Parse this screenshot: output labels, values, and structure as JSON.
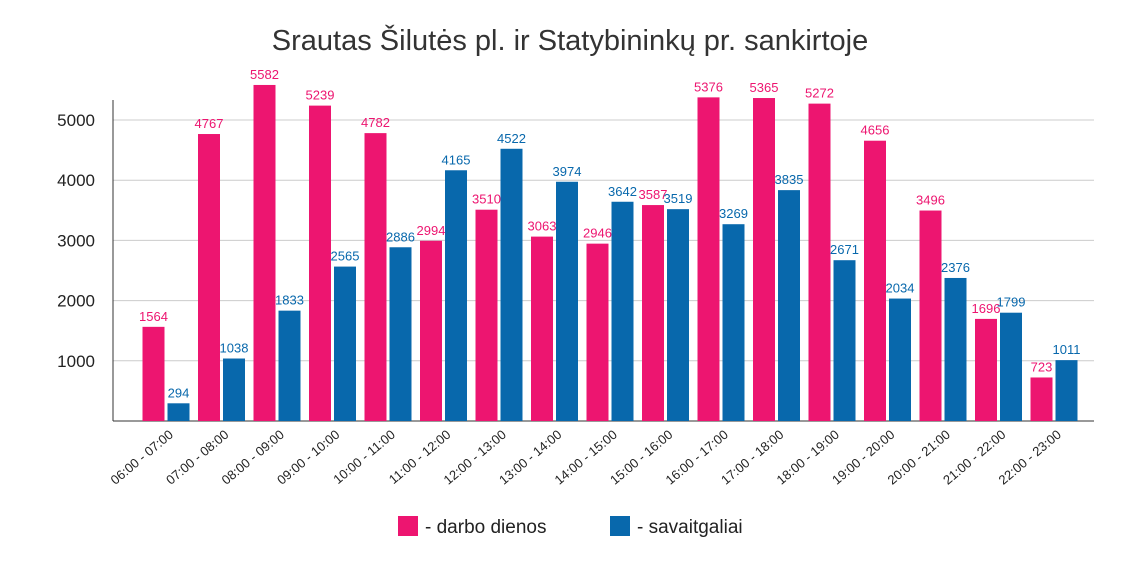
{
  "chart_data": {
    "type": "bar",
    "title": "Srautas Šilutės pl. ir Statybininkų pr. sankirtoje",
    "xlabel": "",
    "ylabel": "",
    "ylim": [
      0,
      5330
    ],
    "yticks": [
      1000,
      2000,
      3000,
      4000,
      5000
    ],
    "grid": true,
    "legend_position": "bottom",
    "categories": [
      "06:00 - 07:00",
      "07:00 - 08:00",
      "08:00 - 09:00",
      "09:00 - 10:00",
      "10:00 - 11:00",
      "11:00 - 12:00",
      "12:00 - 13:00",
      "13:00 - 14:00",
      "14:00 - 15:00",
      "15:00 - 16:00",
      "16:00 - 17:00",
      "17:00 - 18:00",
      "18:00 - 19:00",
      "19:00 - 20:00",
      "20:00 - 21:00",
      "21:00 - 22:00",
      "22:00 - 23:00"
    ],
    "series": [
      {
        "name": "- darbo dienos",
        "color": "#ED1570",
        "values": [
          1564,
          4767,
          5582,
          5239,
          4782,
          2994,
          3510,
          3063,
          2946,
          3587,
          5376,
          5365,
          5272,
          4656,
          3496,
          1696,
          723
        ]
      },
      {
        "name": "- savaitgaliai",
        "color": "#0868AC",
        "values": [
          294,
          1038,
          1833,
          2565,
          2886,
          4165,
          4522,
          3974,
          3642,
          3519,
          3269,
          3835,
          2671,
          2034,
          2376,
          1799,
          1011
        ]
      }
    ]
  }
}
